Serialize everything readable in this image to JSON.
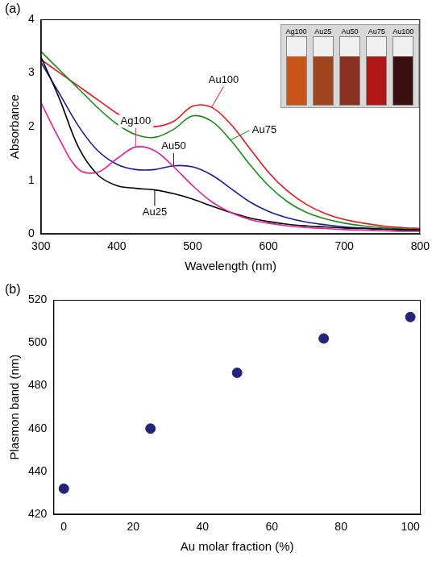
{
  "chart_data": [
    {
      "type": "line",
      "title": "(a)",
      "x_label": "Wavelength (nm)",
      "y_label": "Absorbance",
      "x": [
        300,
        325,
        350,
        375,
        400,
        425,
        450,
        475,
        500,
        525,
        550,
        575,
        600,
        625,
        650,
        675,
        700,
        725,
        750,
        775,
        800
      ],
      "series": [
        {
          "name": "Ag100",
          "color": "#e0209a",
          "values": [
            2.45,
            1.75,
            1.2,
            1.15,
            1.4,
            1.62,
            1.55,
            1.25,
            0.9,
            0.6,
            0.4,
            0.27,
            0.2,
            0.15,
            0.12,
            0.1,
            0.08,
            0.07,
            0.06,
            0.05,
            0.05
          ]
        },
        {
          "name": "Au25",
          "color": "#000000",
          "values": [
            3.3,
            2.5,
            1.6,
            1.1,
            0.9,
            0.85,
            0.82,
            0.75,
            0.65,
            0.52,
            0.4,
            0.3,
            0.23,
            0.18,
            0.15,
            0.13,
            0.11,
            0.1,
            0.09,
            0.08,
            0.07
          ]
        },
        {
          "name": "Au50",
          "color": "#1a1a9a",
          "values": [
            3.2,
            2.6,
            2.0,
            1.55,
            1.3,
            1.2,
            1.2,
            1.27,
            1.25,
            1.1,
            0.85,
            0.6,
            0.42,
            0.3,
            0.22,
            0.17,
            0.13,
            0.11,
            0.09,
            0.08,
            0.07
          ]
        },
        {
          "name": "Au75",
          "color": "#1a8a1a",
          "values": [
            3.4,
            3.05,
            2.7,
            2.35,
            2.05,
            1.85,
            1.8,
            1.95,
            2.2,
            2.1,
            1.75,
            1.3,
            0.9,
            0.6,
            0.4,
            0.28,
            0.2,
            0.15,
            0.12,
            0.1,
            0.08
          ]
        },
        {
          "name": "Au100",
          "color": "#e8141e",
          "values": [
            3.25,
            3.0,
            2.75,
            2.5,
            2.25,
            2.05,
            2.0,
            2.1,
            2.38,
            2.36,
            2.05,
            1.6,
            1.15,
            0.8,
            0.55,
            0.38,
            0.27,
            0.2,
            0.15,
            0.12,
            0.1
          ]
        }
      ],
      "xlim": [
        300,
        800
      ],
      "xticks": [
        300,
        400,
        500,
        600,
        700,
        800
      ],
      "ylim": [
        0,
        4
      ],
      "yticks": [
        0,
        1,
        2,
        3,
        4
      ],
      "grid": false,
      "inset": {
        "labels": [
          "Ag100",
          "Au25",
          "Au50",
          "Au75",
          "Au100"
        ],
        "colors": [
          "#c8561a",
          "#a0461e",
          "#8a3020",
          "#b01818",
          "#3a1010"
        ]
      }
    },
    {
      "type": "scatter",
      "title": "(b)",
      "x_label": "Au molar fraction (%)",
      "y_label": "Plasmon band (nm)",
      "x": [
        0,
        25,
        50,
        75,
        100
      ],
      "values": [
        432,
        460,
        486,
        502,
        512
      ],
      "color": "#23237a",
      "xlim": [
        -3,
        103
      ],
      "xticks": [
        0,
        20,
        40,
        60,
        80,
        100
      ],
      "ylim": [
        420,
        520
      ],
      "yticks": [
        420,
        440,
        460,
        480,
        500,
        520
      ],
      "grid": false
    }
  ]
}
